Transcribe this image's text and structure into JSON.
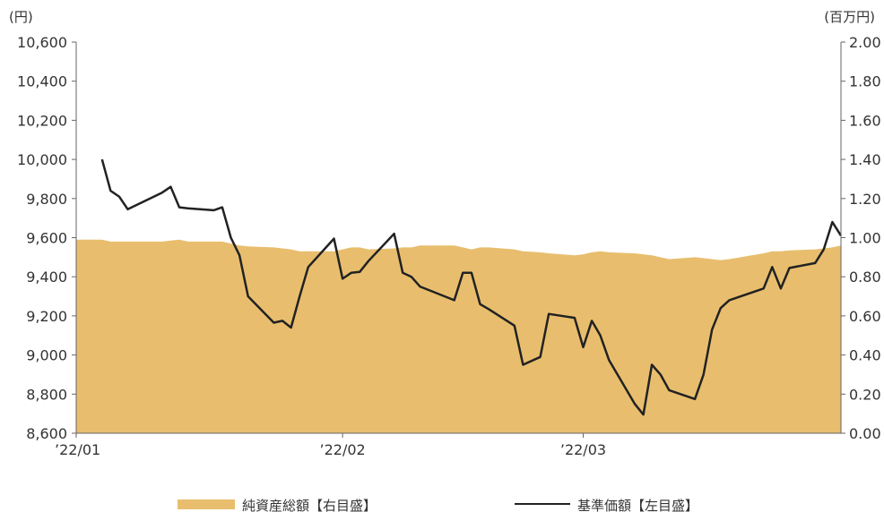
{
  "chart_data": {
    "type": "line",
    "left_axis": {
      "unit": "(円)",
      "min": 8600,
      "max": 10600,
      "ticks": [
        "8,600",
        "8,800",
        "9,000",
        "9,200",
        "9,400",
        "9,600",
        "9,800",
        "10,000",
        "10,200",
        "10,400",
        "10,600"
      ]
    },
    "right_axis": {
      "unit": "(百万円)",
      "min": 0,
      "max": 2,
      "ticks": [
        "0.00",
        "0.20",
        "0.40",
        "0.60",
        "0.80",
        "1.00",
        "1.20",
        "1.40",
        "1.60",
        "1.80",
        "2.00"
      ]
    },
    "x_ticks": [
      "’22/01",
      "’22/02",
      "’22/03"
    ],
    "x": [
      "2022-01-04",
      "2022-01-05",
      "2022-01-06",
      "2022-01-07",
      "2022-01-11",
      "2022-01-12",
      "2022-01-13",
      "2022-01-14",
      "2022-01-17",
      "2022-01-18",
      "2022-01-19",
      "2022-01-20",
      "2022-01-21",
      "2022-01-24",
      "2022-01-25",
      "2022-01-26",
      "2022-01-27",
      "2022-01-28",
      "2022-01-31",
      "2022-02-01",
      "2022-02-02",
      "2022-02-03",
      "2022-02-04",
      "2022-02-07",
      "2022-02-08",
      "2022-02-09",
      "2022-02-10",
      "2022-02-14",
      "2022-02-15",
      "2022-02-16",
      "2022-02-17",
      "2022-02-18",
      "2022-02-21",
      "2022-02-22",
      "2022-02-24",
      "2022-02-25",
      "2022-02-28",
      "2022-03-01",
      "2022-03-02",
      "2022-03-03",
      "2022-03-04",
      "2022-03-07",
      "2022-03-08",
      "2022-03-09",
      "2022-03-10",
      "2022-03-11",
      "2022-03-14",
      "2022-03-15",
      "2022-03-16",
      "2022-03-17",
      "2022-03-18",
      "2022-03-22",
      "2022-03-23",
      "2022-03-24",
      "2022-03-25",
      "2022-03-28",
      "2022-03-29",
      "2022-03-30",
      "2022-03-31"
    ],
    "series": [
      {
        "name": "純資産総額【右目盛】",
        "axis": "right",
        "kind": "area",
        "color": "#e8be6e",
        "values": [
          0.99,
          0.98,
          0.98,
          0.98,
          0.98,
          0.985,
          0.99,
          0.98,
          0.98,
          0.98,
          0.97,
          0.96,
          0.955,
          0.95,
          0.945,
          0.94,
          0.93,
          0.93,
          0.93,
          0.94,
          0.95,
          0.95,
          0.94,
          0.945,
          0.95,
          0.95,
          0.96,
          0.96,
          0.95,
          0.94,
          0.95,
          0.95,
          0.94,
          0.93,
          0.925,
          0.92,
          0.91,
          0.915,
          0.925,
          0.93,
          0.925,
          0.92,
          0.915,
          0.91,
          0.9,
          0.89,
          0.9,
          0.895,
          0.89,
          0.885,
          0.89,
          0.92,
          0.93,
          0.93,
          0.935,
          0.94,
          0.945,
          0.95,
          0.96
        ]
      },
      {
        "name": "基準価額【左目盛】",
        "axis": "left",
        "kind": "line",
        "color": "#222222",
        "values": [
          10000,
          9840,
          9810,
          9745,
          9830,
          9860,
          9755,
          9750,
          9740,
          9755,
          9600,
          9510,
          9300,
          9165,
          9175,
          9140,
          9300,
          9450,
          9595,
          9390,
          9420,
          9425,
          9480,
          9620,
          9420,
          9400,
          9350,
          9280,
          9420,
          9420,
          9260,
          9235,
          9150,
          8950,
          8990,
          9210,
          9190,
          9040,
          9175,
          9100,
          8975,
          8750,
          8695,
          8950,
          8900,
          8820,
          8775,
          8900,
          9130,
          9240,
          9280,
          9340,
          9450,
          9340,
          9445,
          9470,
          9540,
          9680,
          9610
        ]
      }
    ],
    "legend": [
      {
        "label": "純資産総額【右目盛】",
        "kind": "area",
        "color": "#e8be6e"
      },
      {
        "label": "基準価額【左目盛】",
        "kind": "line",
        "color": "#222222"
      }
    ],
    "legend_position": "bottom",
    "grid": false
  }
}
